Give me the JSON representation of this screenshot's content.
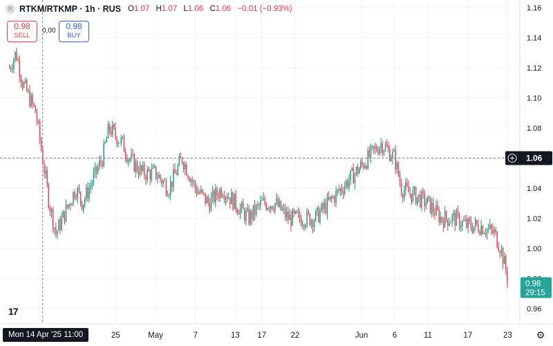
{
  "header": {
    "symbol": "RTKM/RTKMP · 1h · RUS",
    "o_label": "O",
    "o": "1.07",
    "h_label": "H",
    "h": "1.07",
    "l_label": "L",
    "l": "1.06",
    "c_label": "C",
    "c": "1.06",
    "change": "−0.01 (−0.93%)"
  },
  "trade": {
    "sell_price": "0.98",
    "sell_label": "SELL",
    "buy_price": "0.98",
    "buy_label": "BUY",
    "spread": "0,00"
  },
  "crosshair": {
    "date_label": "Mon 14 Apr '25   11:00",
    "price_label": "1.06"
  },
  "last_price": {
    "price": "0.98",
    "countdown": "29:15"
  },
  "colors": {
    "up": "#089981",
    "down": "#f23645",
    "last": "#26a69a",
    "grid": "#f0f3fa"
  },
  "chart_data": {
    "type": "candlestick",
    "title": "",
    "xlabel": "",
    "ylabel": "",
    "ylim": [
      0.95,
      1.165
    ],
    "y_ticks": [
      0.96,
      0.98,
      1.0,
      1.02,
      1.04,
      1.06,
      1.08,
      1.1,
      1.12,
      1.14,
      1.16
    ],
    "x_ticks": [
      {
        "label": "25",
        "date": "2025-04-25"
      },
      {
        "label": "May",
        "date": "2025-05-01"
      },
      {
        "label": "7",
        "date": "2025-05-07"
      },
      {
        "label": "13",
        "date": "2025-05-13"
      },
      {
        "label": "17",
        "date": "2025-05-17"
      },
      {
        "label": "22",
        "date": "2025-05-22"
      },
      {
        "label": "Jun",
        "date": "2025-06-01"
      },
      {
        "label": "6",
        "date": "2025-06-06"
      },
      {
        "label": "11",
        "date": "2025-06-11"
      },
      {
        "label": "17",
        "date": "2025-06-17"
      },
      {
        "label": "23",
        "date": "2025-06-23"
      }
    ],
    "price_path": [
      [
        "2025-04-09",
        1.12
      ],
      [
        "2025-04-10",
        1.13
      ],
      [
        "2025-04-11",
        1.11
      ],
      [
        "2025-04-12",
        1.1
      ],
      [
        "2025-04-13",
        1.09
      ],
      [
        "2025-04-14",
        1.06
      ],
      [
        "2025-04-15",
        1.03
      ],
      [
        "2025-04-16",
        1.01
      ],
      [
        "2025-04-17",
        1.02
      ],
      [
        "2025-04-18",
        1.03
      ],
      [
        "2025-04-19",
        1.04
      ],
      [
        "2025-04-20",
        1.03
      ],
      [
        "2025-04-22",
        1.05
      ],
      [
        "2025-04-23",
        1.06
      ],
      [
        "2025-04-24",
        1.08
      ],
      [
        "2025-04-26",
        1.07
      ],
      [
        "2025-04-27",
        1.06
      ],
      [
        "2025-04-29",
        1.05
      ],
      [
        "2025-05-01",
        1.05
      ],
      [
        "2025-05-03",
        1.04
      ],
      [
        "2025-05-05",
        1.06
      ],
      [
        "2025-05-07",
        1.04
      ],
      [
        "2025-05-09",
        1.03
      ],
      [
        "2025-05-11",
        1.04
      ],
      [
        "2025-05-13",
        1.03
      ],
      [
        "2025-05-15",
        1.02
      ],
      [
        "2025-05-17",
        1.03
      ],
      [
        "2025-05-19",
        1.03
      ],
      [
        "2025-05-21",
        1.02
      ],
      [
        "2025-05-23",
        1.02
      ],
      [
        "2025-05-25",
        1.02
      ],
      [
        "2025-05-27",
        1.03
      ],
      [
        "2025-05-29",
        1.04
      ],
      [
        "2025-05-31",
        1.05
      ],
      [
        "2025-06-02",
        1.06
      ],
      [
        "2025-06-04",
        1.07
      ],
      [
        "2025-06-06",
        1.06
      ],
      [
        "2025-06-07",
        1.04
      ],
      [
        "2025-06-09",
        1.035
      ],
      [
        "2025-06-11",
        1.03
      ],
      [
        "2025-06-13",
        1.02
      ],
      [
        "2025-06-15",
        1.02
      ],
      [
        "2025-06-17",
        1.015
      ],
      [
        "2025-06-19",
        1.015
      ],
      [
        "2025-06-21",
        1.01
      ],
      [
        "2025-06-22",
        1.0
      ],
      [
        "2025-06-23",
        0.98
      ]
    ]
  }
}
